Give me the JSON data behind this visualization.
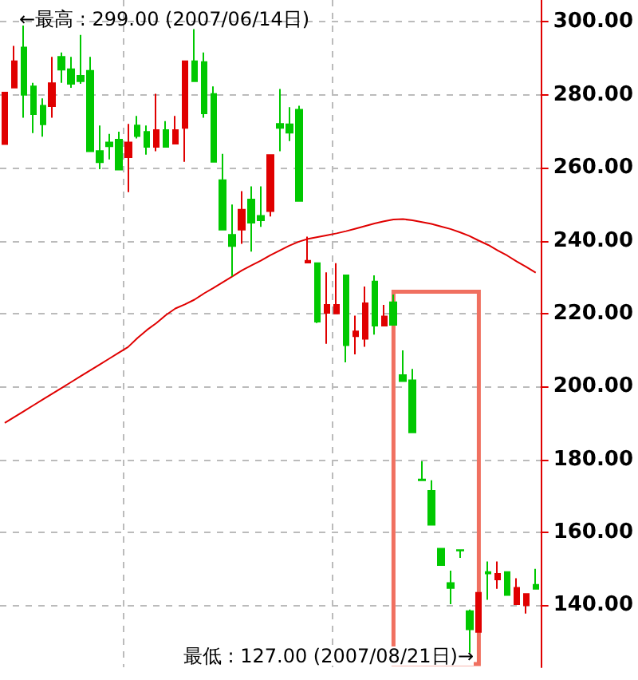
{
  "chart_data": {
    "type": "candlestick",
    "categories": [
      null,
      null,
      null,
      null,
      null,
      null,
      null,
      null,
      null,
      null,
      null,
      null,
      null,
      null,
      null,
      null,
      null,
      null,
      null,
      null,
      null,
      null,
      null,
      null,
      null,
      null,
      null,
      null,
      null,
      null,
      null,
      null,
      null,
      null,
      null,
      null,
      null,
      null,
      null,
      null,
      null,
      null,
      null,
      null,
      null,
      null,
      null,
      null,
      null,
      null,
      null,
      null,
      null,
      null,
      null,
      null,
      null
    ],
    "ohlc": [
      [
        266.5,
        280.6,
        266.5,
        280.6
      ],
      [
        282,
        293.4,
        282,
        289.2
      ],
      [
        293,
        299,
        273.7,
        280
      ],
      [
        282.3,
        283.3,
        269.5,
        274.7
      ],
      [
        277,
        279,
        268.5,
        271.9
      ],
      [
        276.9,
        290.4,
        273.7,
        283.2
      ],
      [
        290.4,
        291.6,
        283.3,
        286.9
      ],
      [
        287,
        290.4,
        281.9,
        283
      ],
      [
        285.2,
        296.4,
        283,
        283.7
      ],
      [
        286.6,
        290.4,
        264.5,
        264.5
      ],
      [
        264.6,
        271.6,
        259.6,
        261.5
      ],
      [
        266.9,
        269.3,
        262.3,
        265.9
      ],
      [
        267.7,
        269.9,
        259.5,
        259.5
      ],
      [
        262.9,
        272,
        253.3,
        266.9
      ],
      [
        271.6,
        274.2,
        268,
        268.7
      ],
      [
        269.8,
        271.6,
        263.6,
        265.7
      ],
      [
        265.7,
        280.3,
        264.5,
        270.3
      ],
      [
        270.3,
        272.8,
        265.7,
        265.7
      ],
      [
        266.6,
        274.2,
        266.6,
        270.3
      ],
      [
        270.9,
        289.2,
        261.6,
        289.2
      ],
      [
        289.2,
        298,
        283.7,
        283.7
      ],
      [
        289,
        291.6,
        273.7,
        274.9
      ],
      [
        280.2,
        282.3,
        261.6,
        261.6
      ],
      [
        256.6,
        263.8,
        243,
        243
      ],
      [
        241.6,
        249.9,
        230.2,
        238.5
      ],
      [
        243,
        253.6,
        239.1,
        248.5
      ],
      [
        251.3,
        254.9,
        237,
        244.9
      ],
      [
        246.8,
        254.9,
        243.8,
        245.6
      ],
      [
        248.1,
        263.5,
        246.6,
        263.5
      ],
      [
        272,
        281.6,
        264.5,
        270.9
      ],
      [
        271.9,
        276.6,
        267.3,
        269.6
      ],
      [
        275.9,
        277,
        250.9,
        250.9
      ],
      [
        234,
        241.1,
        234,
        234.5
      ],
      [
        233.8,
        233.8,
        217.4,
        217.8
      ],
      [
        220.2,
        231.3,
        211.7,
        222.4
      ],
      [
        220,
        233.8,
        220,
        222.4
      ],
      [
        230.5,
        230.5,
        206.6,
        211.3
      ],
      [
        213.8,
        219.4,
        208.8,
        215.1
      ],
      [
        213.1,
        227.4,
        210.9,
        222.8
      ],
      [
        228.8,
        230.5,
        214.2,
        216.7
      ],
      [
        216.7,
        222.4,
        216.7,
        219.2
      ],
      [
        223.1,
        225.2,
        216.9,
        216.9
      ],
      [
        203.1,
        209.9,
        201.5,
        201.5
      ],
      [
        201.7,
        204.8,
        187.4,
        187.4
      ],
      [
        174.5,
        179.5,
        174.3,
        174.3
      ],
      [
        171.4,
        174.3,
        162.1,
        162.1
      ],
      [
        155.5,
        155.5,
        151,
        151
      ],
      [
        146.1,
        149.5,
        140.3,
        144.7
      ],
      [
        155.1,
        155.1,
        153,
        155
      ],
      [
        138.4,
        138.8,
        127,
        133.4
      ],
      [
        132.7,
        143.4,
        132.7,
        143.4
      ],
      [
        149.1,
        152,
        141.5,
        148.7
      ],
      [
        147.1,
        152,
        144.5,
        148.6
      ],
      [
        149.1,
        149.1,
        142.8,
        142.8
      ],
      [
        140.3,
        147.4,
        140.3,
        144.8
      ],
      [
        140,
        143.1,
        137.7,
        143.1
      ],
      [
        145.6,
        150,
        144.5,
        144.5
      ]
    ],
    "colors": [
      "#e00000",
      "#e00000",
      "#00c800",
      "#00c800",
      "#00c800",
      "#e00000",
      "#00c800",
      "#00c800",
      "#00c800",
      "#00c800",
      "#00c800",
      "#00c800",
      "#00c800",
      "#e00000",
      "#00c800",
      "#00c800",
      "#e00000",
      "#00c800",
      "#e00000",
      "#e00000",
      "#00c800",
      "#00c800",
      "#00c800",
      "#00c800",
      "#00c800",
      "#e00000",
      "#00c800",
      "#00c800",
      "#e00000",
      "#00c800",
      "#00c800",
      "#00c800",
      "#e00000",
      "#00c800",
      "#e00000",
      "#e00000",
      "#00c800",
      "#e00000",
      "#e00000",
      "#00c800",
      "#e00000",
      "#00c800",
      "#00c800",
      "#00c800",
      "#00c800",
      "#00c800",
      "#00c800",
      "#00c800",
      "#00c800",
      "#00c800",
      "#e00000",
      "#00c800",
      "#e00000",
      "#00c800",
      "#e00000",
      "#e00000",
      "#00c800"
    ],
    "series": [
      {
        "type": "line",
        "color": "#e00000",
        "values": [
          190,
          191.6,
          193.2,
          194.8,
          196.4,
          198,
          199.6,
          201.2,
          202.8,
          204.4,
          206,
          207.6,
          209.2,
          210.8,
          213.3,
          215.5,
          217.4,
          219.6,
          221.4,
          222.5,
          223.8,
          225.5,
          227,
          228.6,
          230.2,
          231.8,
          233.2,
          234.5,
          236,
          237.3,
          238.6,
          239.7,
          240.5,
          241,
          241.5,
          242,
          242.6,
          243.3,
          244,
          244.7,
          245.3,
          245.8,
          245.9,
          245.6,
          245.1,
          244.6,
          243.9,
          243.2,
          242.3,
          241.3,
          240,
          238.8,
          237.3,
          235.9,
          234.3,
          232.8,
          231.2
        ]
      }
    ],
    "ylim": [
      123,
      306
    ],
    "yticks": [
      {
        "value": 140,
        "label": "140.00"
      },
      {
        "value": 160,
        "label": "160.00"
      },
      {
        "value": 180,
        "label": "180.00"
      },
      {
        "value": 200,
        "label": "200.00"
      },
      {
        "value": 220,
        "label": "220.00"
      },
      {
        "value": 240,
        "label": "240.00"
      },
      {
        "value": 260,
        "label": "260.00"
      },
      {
        "value": 280,
        "label": "280.00"
      },
      {
        "value": 300,
        "label": "300.00"
      }
    ],
    "grid": true,
    "annotations": [
      "←最高 : 299.00 (2007/06/14日)",
      "最低 : 127.00 (2007/08/21日)→"
    ]
  }
}
